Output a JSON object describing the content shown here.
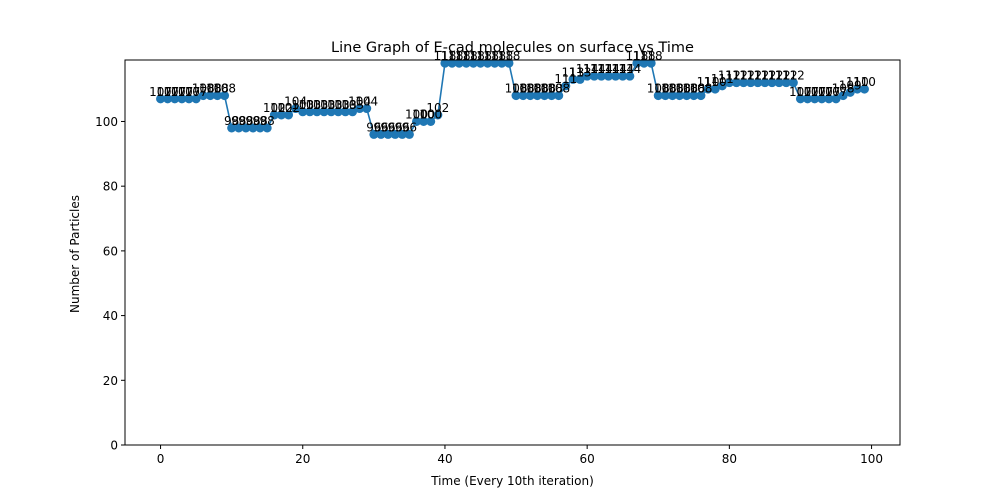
{
  "chart_data": {
    "type": "line",
    "title": "Line Graph of E-cad molecules on surface vs Time",
    "xlabel": "Time (Every 10th iteration)",
    "ylabel": "Number of Particles",
    "xlim": [
      -5,
      104
    ],
    "ylim": [
      0,
      119
    ],
    "xticks": [
      0,
      20,
      40,
      60,
      80,
      100
    ],
    "yticks": [
      0,
      20,
      40,
      60,
      80,
      100
    ],
    "grid": false,
    "line_color": "#1f77b4",
    "label_color": "#000000",
    "series": [
      {
        "x": [
          0,
          1,
          2,
          3,
          4,
          5,
          6,
          7,
          8,
          9,
          10,
          11,
          12,
          13,
          14,
          15,
          16,
          17,
          18,
          19,
          20,
          21,
          22,
          23,
          24,
          25,
          26,
          27,
          28,
          29,
          30,
          31,
          32,
          33,
          34,
          35,
          36,
          37,
          38,
          39,
          40,
          41,
          42,
          43,
          44,
          45,
          46,
          47,
          48,
          49,
          50,
          51,
          52,
          53,
          54,
          55,
          56,
          57,
          58,
          59,
          60,
          61,
          62,
          63,
          64,
          65,
          66,
          67,
          68,
          69,
          70,
          71,
          72,
          73,
          74,
          75,
          76,
          77,
          78,
          79,
          80,
          81,
          82,
          83,
          84,
          85,
          86,
          87,
          88,
          89,
          90,
          91,
          92,
          93,
          94,
          95,
          96,
          97,
          98,
          99
        ],
        "values": [
          107,
          107,
          107,
          107,
          107,
          107,
          108,
          108,
          108,
          108,
          98,
          98,
          98,
          98,
          98,
          98,
          102,
          102,
          102,
          104,
          103,
          103,
          103,
          103,
          103,
          103,
          103,
          103,
          104,
          104,
          96,
          96,
          96,
          96,
          96,
          96,
          100,
          100,
          100,
          102,
          118,
          118,
          118,
          118,
          118,
          118,
          118,
          118,
          118,
          118,
          108,
          108,
          108,
          108,
          108,
          108,
          108,
          111,
          113,
          113,
          114,
          114,
          114,
          114,
          114,
          114,
          114,
          118,
          118,
          118,
          108,
          108,
          108,
          108,
          108,
          108,
          108,
          110,
          110,
          111,
          112,
          112,
          112,
          112,
          112,
          112,
          112,
          112,
          112,
          112,
          107,
          107,
          107,
          107,
          107,
          107,
          108,
          109,
          110,
          110
        ],
        "data_labels": [
          "107",
          "107",
          "107",
          "107",
          "107",
          "107",
          "108",
          "108",
          "108",
          "108",
          "98",
          "98",
          "98",
          "98",
          "98",
          "98",
          "102",
          "102",
          "102",
          "104",
          "103",
          "103",
          "103",
          "103",
          "103",
          "103",
          "103",
          "103",
          "104",
          "104",
          "96",
          "96",
          "96",
          "96",
          "96",
          "96",
          "100",
          "100",
          "100",
          "102",
          "118",
          "118",
          "118",
          "118",
          "118",
          "118",
          "118",
          "118",
          "118",
          "118",
          "108",
          "108",
          "108",
          "108",
          "108",
          "108",
          "108",
          "111",
          "113",
          "113",
          "114",
          "114",
          "114",
          "114",
          "114",
          "114",
          "114",
          "118",
          "118",
          "118",
          "108",
          "108",
          "108",
          "108",
          "108",
          "108",
          "108",
          "110",
          "110",
          "111",
          "112",
          "112",
          "112",
          "112",
          "112",
          "112",
          "112",
          "112",
          "112",
          "112",
          "107",
          "107",
          "107",
          "107",
          "107",
          "107",
          "108",
          "109",
          "110",
          "110"
        ]
      }
    ]
  }
}
